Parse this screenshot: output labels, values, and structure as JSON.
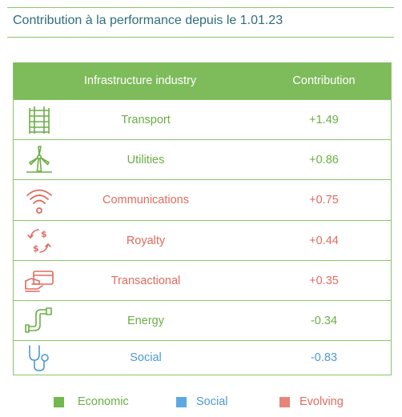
{
  "title": "Contribution à la performance depuis le 1.01.23",
  "table": {
    "header": {
      "col1": "Infrastructure industry",
      "col2": "Contribution"
    },
    "rows": [
      {
        "name": "Transport",
        "value": "+1.49",
        "category": "economic",
        "icon": "railway-track-icon"
      },
      {
        "name": "Utilities",
        "value": "+0.86",
        "category": "economic",
        "icon": "wind-turbine-icon"
      },
      {
        "name": "Communications",
        "value": "+0.75",
        "category": "evolving",
        "icon": "wifi-signal-icon"
      },
      {
        "name": "Royalty",
        "value": "+0.44",
        "category": "evolving",
        "icon": "dollar-cycle-icon"
      },
      {
        "name": "Transactional",
        "value": "+0.35",
        "category": "evolving",
        "icon": "card-payment-icon"
      },
      {
        "name": "Energy",
        "value": "-0.34",
        "category": "economic",
        "icon": "pipeline-icon"
      },
      {
        "name": "Social",
        "value": "-0.83",
        "category": "social",
        "icon": "stethoscope-icon"
      }
    ]
  },
  "legend": {
    "economic": "Economic",
    "social": "Social",
    "evolving": "Evolving"
  },
  "colors": {
    "economic": "#6aae45",
    "social": "#4a9ad6",
    "evolving": "#e06b5e",
    "economic_swatch": "#72b84c",
    "social_swatch": "#5aaae0",
    "evolving_swatch": "#e8847a",
    "header_bg": "#7dbb5b",
    "title": "#2e6d78"
  }
}
